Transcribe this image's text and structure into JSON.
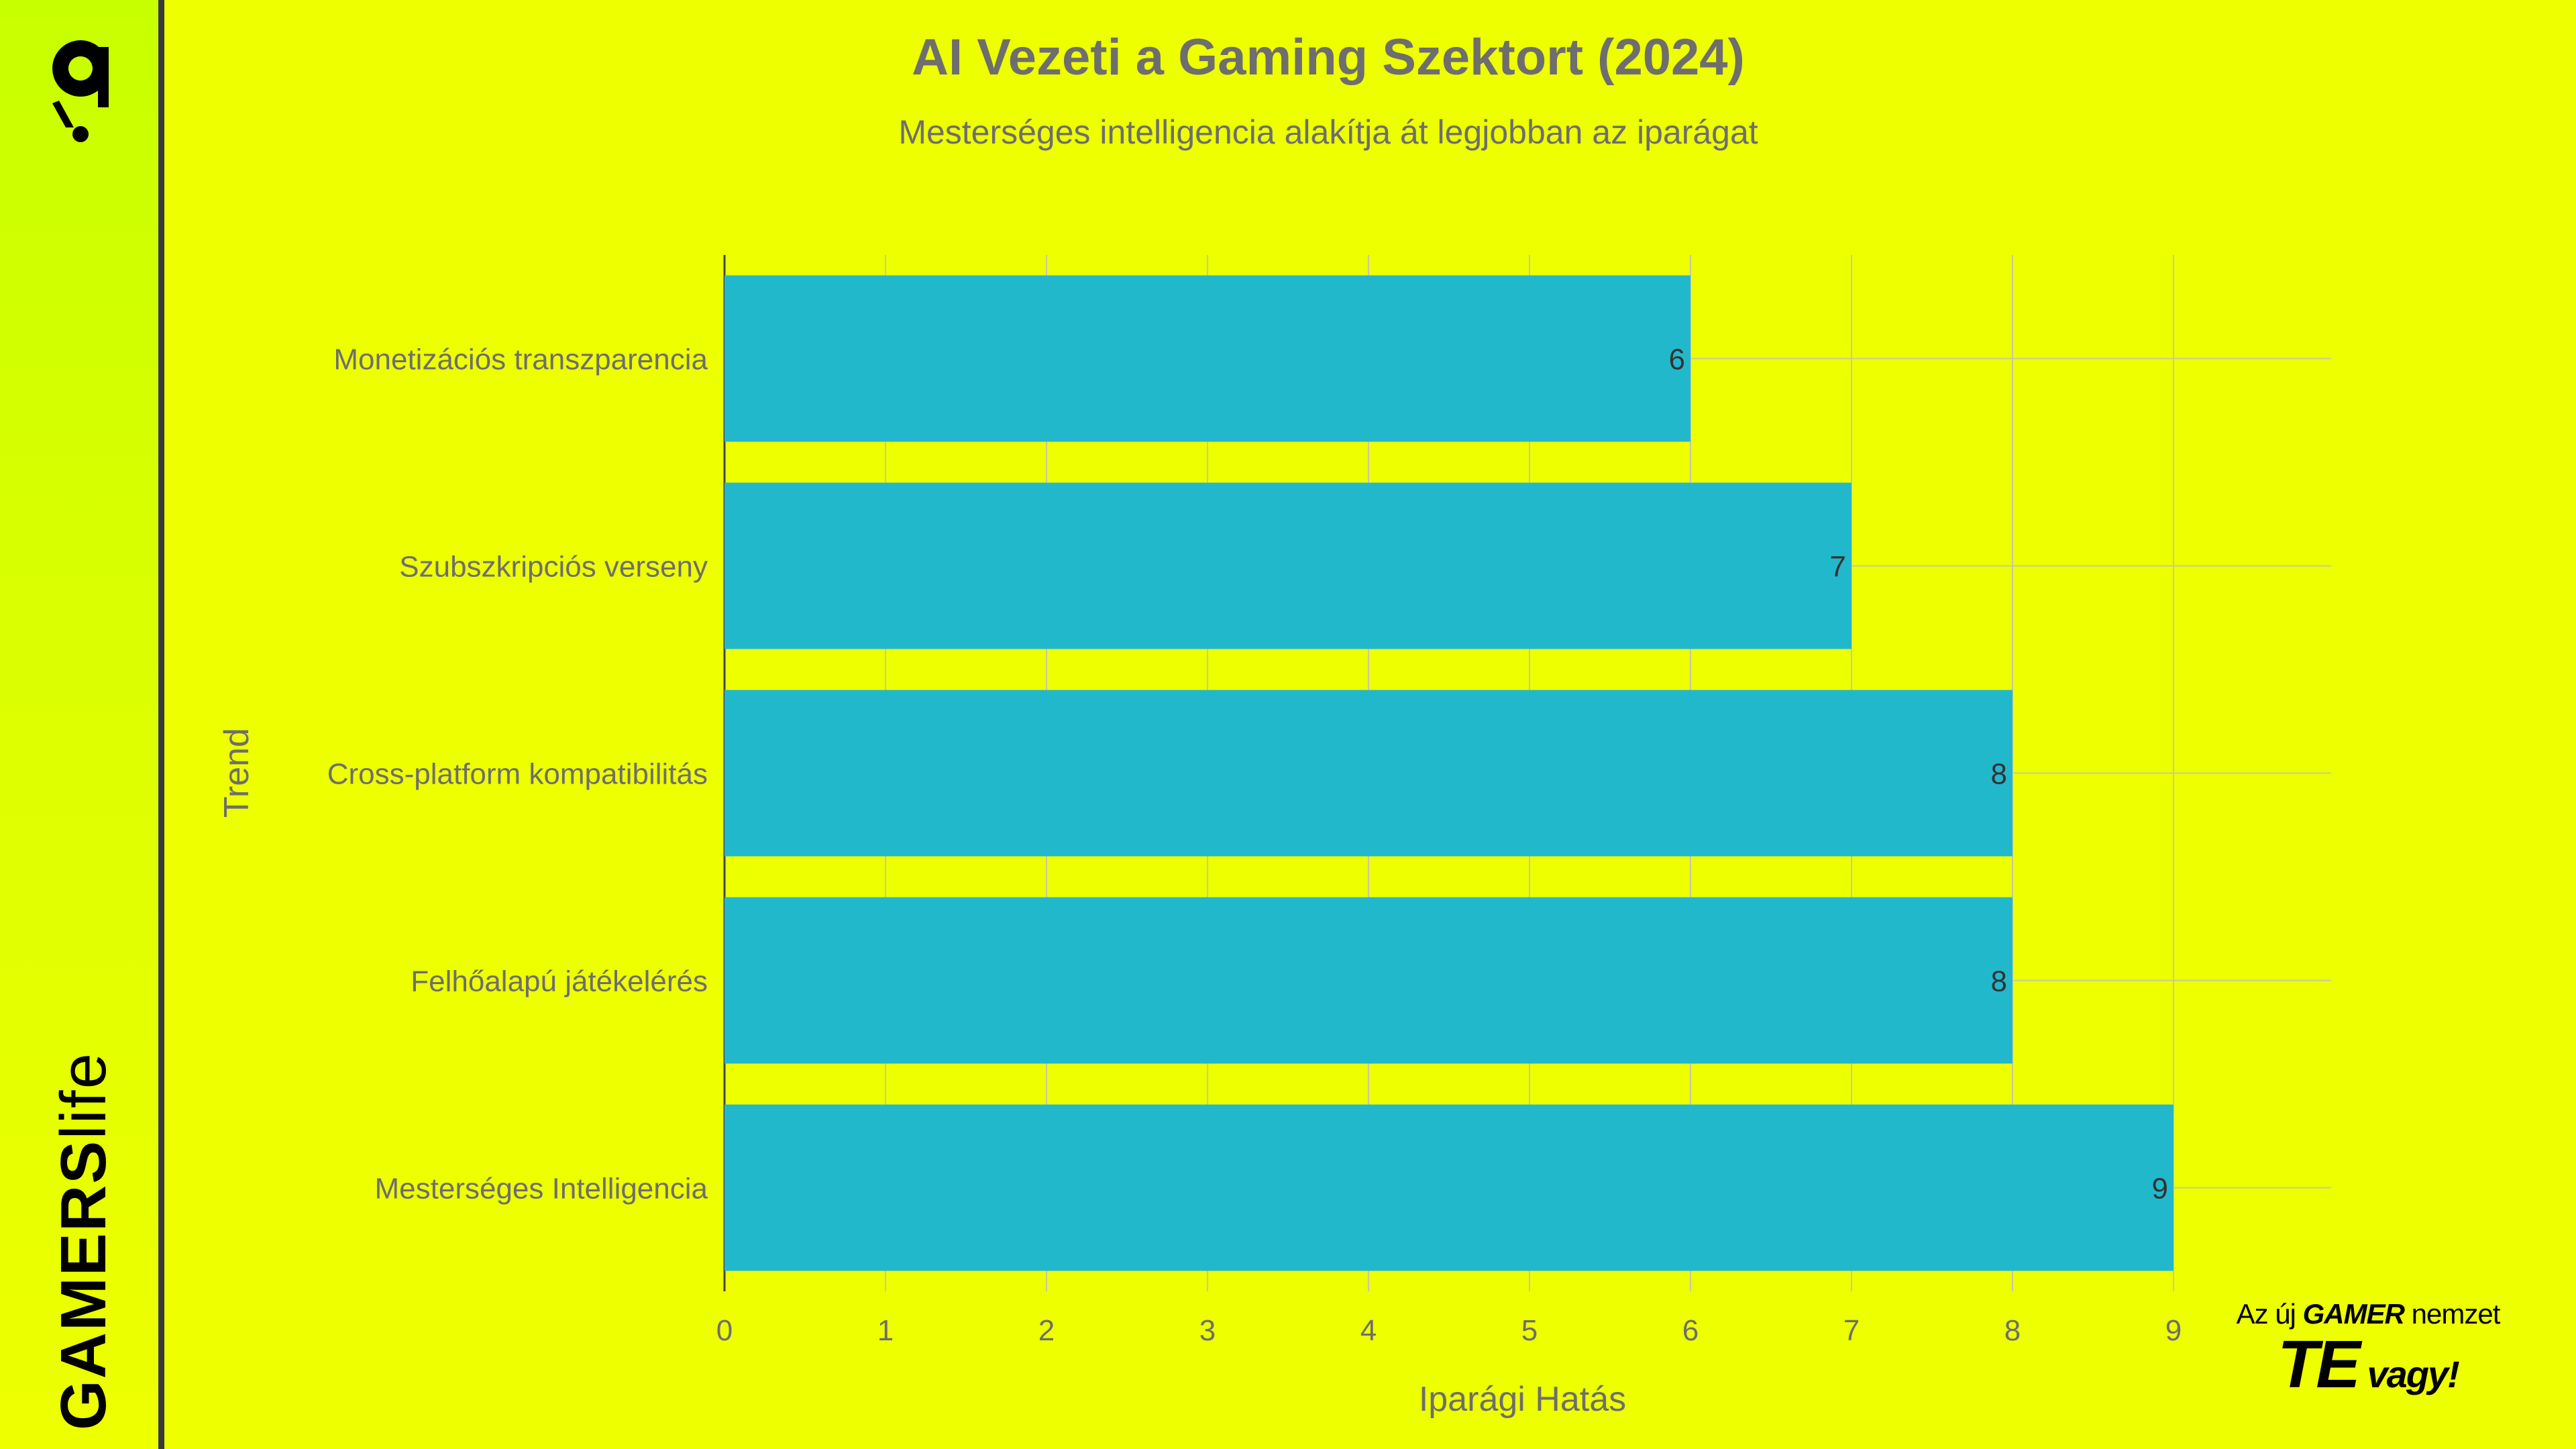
{
  "brand": {
    "wordmark_bold": "GAMERS",
    "wordmark_thin": "life",
    "logo_icon": "brand-logo-icon",
    "tagline": {
      "prefix": "Az új ",
      "highlight": "GAMER",
      "suffix": " nemzet",
      "big": "TE",
      "end": " vagy!"
    }
  },
  "colors": {
    "background": "#eeff00",
    "bar": "#22b8cc",
    "text": "#6e6e6e",
    "grid": "#c8c8a0",
    "sidebar_divider": "#3a3a3a"
  },
  "chart_data": {
    "type": "bar",
    "orientation": "horizontal",
    "title": "AI Vezeti a Gaming Szektort (2024)",
    "subtitle": "Mesterséges intelligencia alakítja át legjobban az iparágat",
    "xlabel": "Iparági Hatás",
    "ylabel": "Trend",
    "categories": [
      "Monetizációs transzparencia",
      "Szubszkripciós verseny",
      "Cross-platform kompatibilitás",
      "Felhőalapú játékelérés",
      "Mesterséges Intelligencia"
    ],
    "values": [
      6,
      7,
      8,
      8,
      9
    ],
    "data_labels": [
      "6",
      "7",
      "8",
      "8",
      "9"
    ],
    "xlim": [
      0,
      10
    ],
    "xticks": [
      0,
      1,
      2,
      3,
      4,
      5,
      6,
      7,
      8,
      9
    ],
    "grid": true,
    "legend": "none"
  }
}
